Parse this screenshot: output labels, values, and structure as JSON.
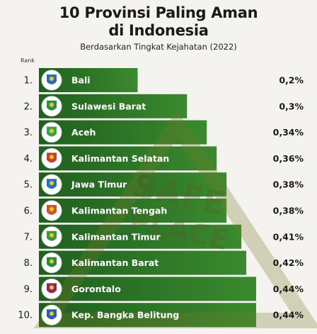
{
  "header": {
    "title_line1": "10 Provinsi Paling Aman",
    "title_line2": "di Indonesia",
    "subtitle": "Berdasarkan Tingkat Kejahatan (2022)",
    "rank_label": "Rank"
  },
  "watermark": {
    "line1": "SAFE",
    "line2": "PLACE"
  },
  "colors": {
    "bar_dark": "#1f5f1f",
    "bar_light": "#3b8a2e",
    "background": "#f4f3ef",
    "text": "#1a1a1a"
  },
  "chart_data": {
    "type": "bar",
    "orientation": "horizontal",
    "title": "10 Provinsi Paling Aman di Indonesia",
    "subtitle": "Berdasarkan Tingkat Kejahatan (2022)",
    "ranks": [
      "1.",
      "2.",
      "3.",
      "4.",
      "5.",
      "6.",
      "7.",
      "8.",
      "9.",
      "10."
    ],
    "categories": [
      "Bali",
      "Sulawesi Barat",
      "Aceh",
      "Kalimantan Selatan",
      "Jawa Timur",
      "Kalimantan Tengah",
      "Kalimantan Timur",
      "Kalimantan Barat",
      "Gorontalo",
      "Kep. Bangka Belitung"
    ],
    "values": [
      0.2,
      0.3,
      0.34,
      0.36,
      0.38,
      0.38,
      0.41,
      0.42,
      0.44,
      0.44
    ],
    "value_labels": [
      "0,2%",
      "0,3%",
      "0,34%",
      "0,36%",
      "0,38%",
      "0,38%",
      "0,41%",
      "0,42%",
      "0,44%",
      "0,44%"
    ],
    "icons": [
      "bali-emblem-icon",
      "sulawesi-barat-emblem-icon",
      "aceh-emblem-icon",
      "kalimantan-selatan-emblem-icon",
      "jawa-timur-emblem-icon",
      "kalimantan-tengah-emblem-icon",
      "kalimantan-timur-emblem-icon",
      "kalimantan-barat-emblem-icon",
      "gorontalo-emblem-icon",
      "bangka-belitung-emblem-icon"
    ],
    "icon_colors": [
      "#2a6fb5",
      "#2a8f4a",
      "#3aa04a",
      "#c8402a",
      "#2a70b8",
      "#c85a2a",
      "#3a9a3a",
      "#2a8a3a",
      "#8a2a5a",
      "#2a5fb0"
    ],
    "xlim": [
      0,
      0.44
    ],
    "grid": false,
    "legend": "none"
  }
}
